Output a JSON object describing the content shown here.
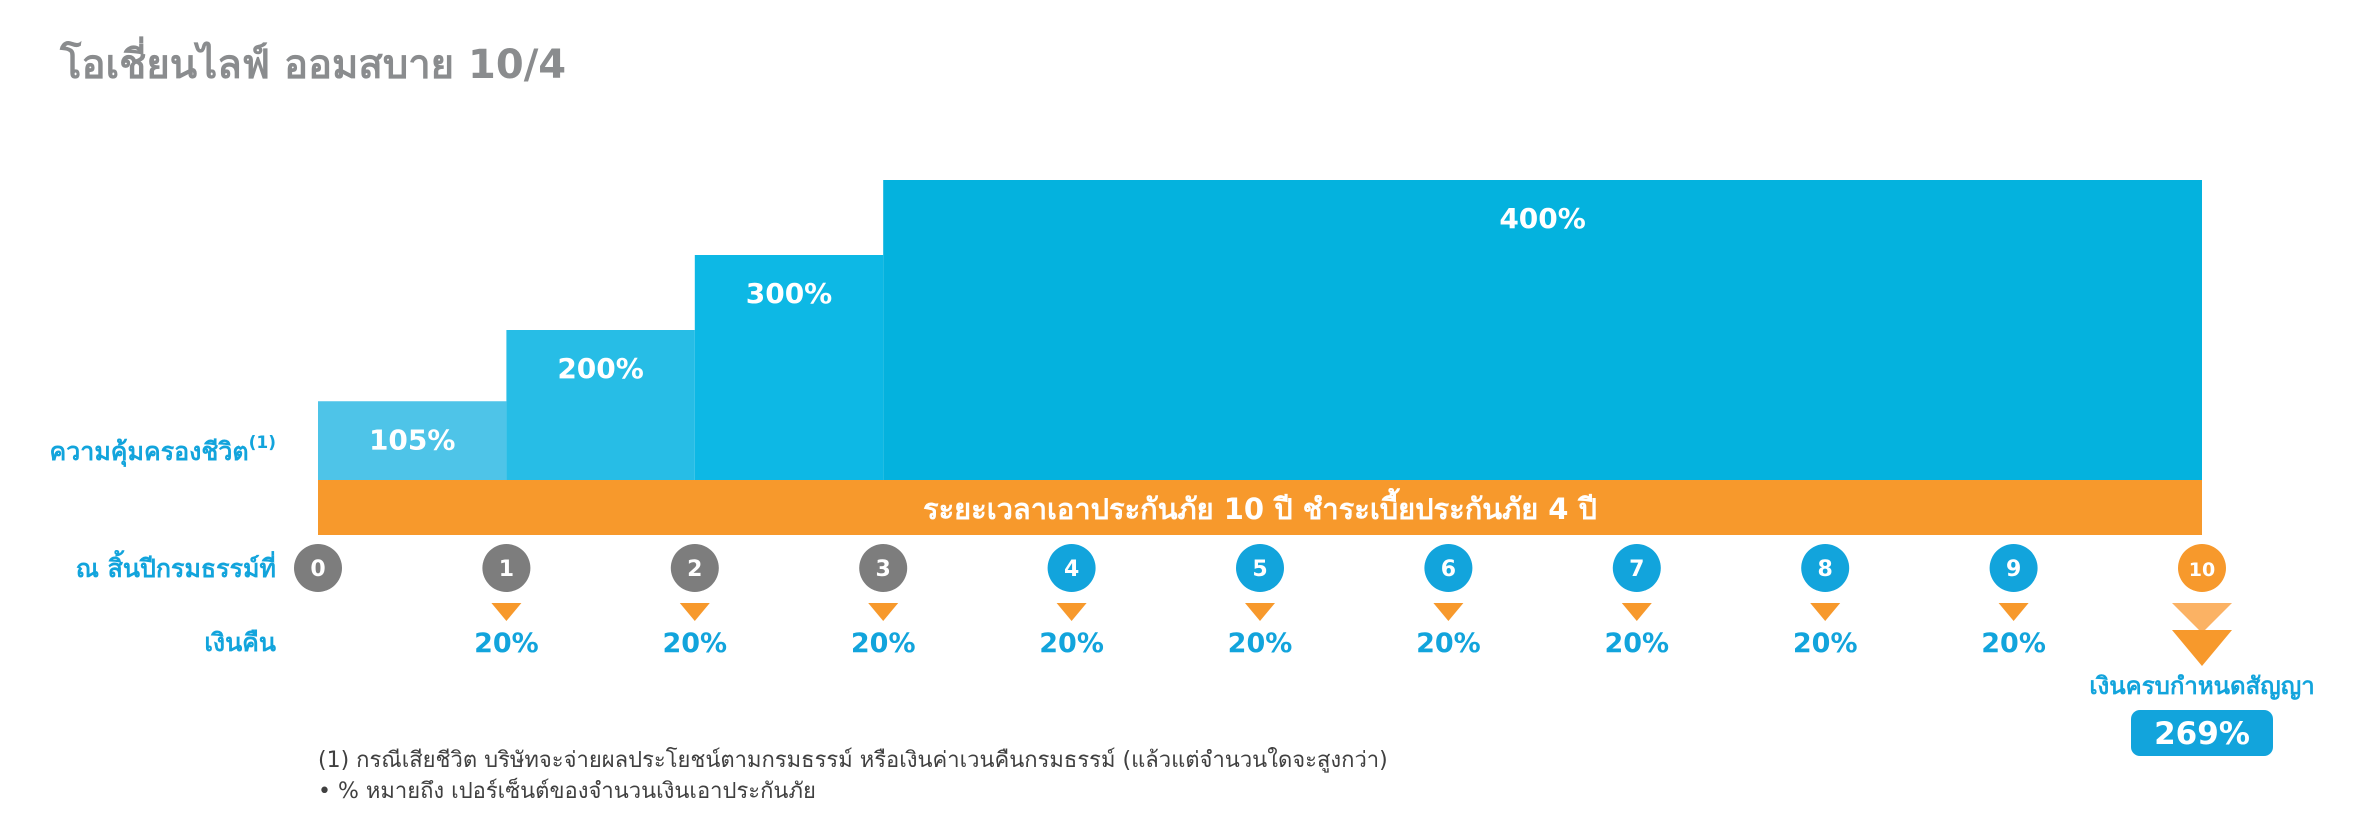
{
  "title": "โอเชี่ยนไลฟ์ ออมสบาย 10/4",
  "colors": {
    "steps": [
      "#4ec4e8",
      "#27bde6",
      "#0db8e5",
      "#04b2de"
    ],
    "orange": "#f7992c",
    "orange_light": "#fbb264",
    "gray_circle": "#7d7d7d",
    "blue_text": "#12a4dc",
    "white": "#ffffff"
  },
  "chart_data": {
    "type": "bar",
    "title": "",
    "coverage_label": "ความคุ้มครองชีวิต",
    "coverage_sup": "(1)",
    "coverage": [
      {
        "from_year": 0,
        "to_year": 1,
        "value": 105,
        "label": "105%"
      },
      {
        "from_year": 1,
        "to_year": 2,
        "value": 200,
        "label": "200%"
      },
      {
        "from_year": 2,
        "to_year": 3,
        "value": 300,
        "label": "300%"
      },
      {
        "from_year": 3,
        "to_year": 10,
        "value": 400,
        "label": "400%"
      }
    ],
    "band_text": "ระยะเวลาเอาประกันภัย 10 ปี ชำระเบี้ยประกันภัย 4 ปี",
    "year_label": "ณ สิ้นปีกรมธรรม์ที่",
    "years": [
      "0",
      "1",
      "2",
      "3",
      "4",
      "5",
      "6",
      "7",
      "8",
      "9",
      "10"
    ],
    "cashback_label": "เงินคืน",
    "cashback": [
      {
        "year": 1,
        "value": 20,
        "label": "20%"
      },
      {
        "year": 2,
        "value": 20,
        "label": "20%"
      },
      {
        "year": 3,
        "value": 20,
        "label": "20%"
      },
      {
        "year": 4,
        "value": 20,
        "label": "20%"
      },
      {
        "year": 5,
        "value": 20,
        "label": "20%"
      },
      {
        "year": 6,
        "value": 20,
        "label": "20%"
      },
      {
        "year": 7,
        "value": 20,
        "label": "20%"
      },
      {
        "year": 8,
        "value": 20,
        "label": "20%"
      },
      {
        "year": 9,
        "value": 20,
        "label": "20%"
      }
    ],
    "maturity": {
      "year": 10,
      "label": "เงินครบกำหนดสัญญา",
      "value": 269,
      "value_label": "269%"
    },
    "ylim": [
      0,
      400
    ]
  },
  "footnotes": [
    "(1)  กรณีเสียชีวิต บริษัทจะจ่ายผลประโยชน์ตามกรมธรรม์ หรือเงินค่าเวนคืนกรมธรรม์ (แล้วแต่จำนวนใดจะสูงกว่า)",
    "• % หมายถึง เปอร์เซ็นต์ของจำนวนเงินเอาประกันภัย"
  ]
}
